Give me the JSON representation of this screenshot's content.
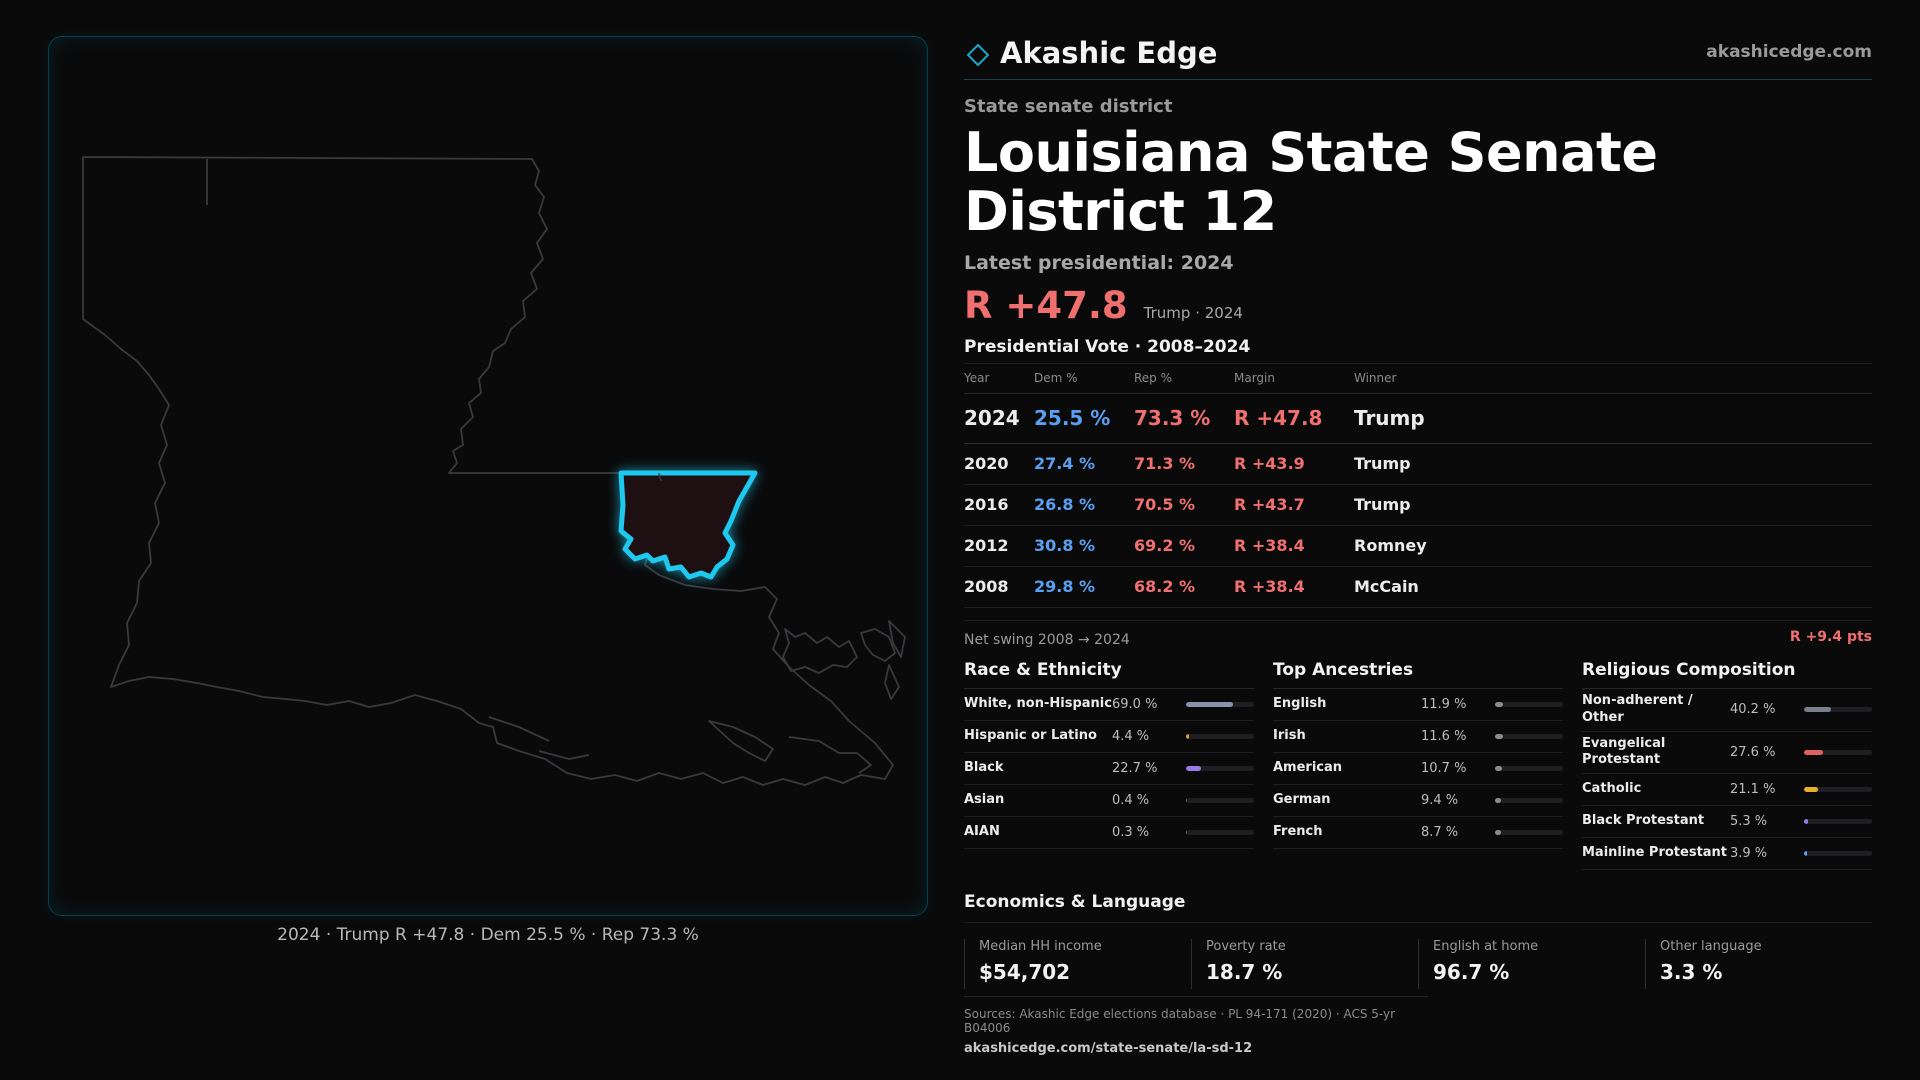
{
  "brand": {
    "name": "Akashic Edge",
    "url": "akashicedge.com",
    "logo_icon": "diamond-outline-icon",
    "accent": "#1aa7c9"
  },
  "header": {
    "eyebrow": "State senate district",
    "title": "Louisiana State Senate District 12",
    "latest_label": "Latest presidential: 2024",
    "margin": "R +47.8",
    "margin_note": "Trump · 2024"
  },
  "map": {
    "caption": "2024 · Trump R +47.8 · Dem 25.5 % · Rep 73.3 %",
    "highlight_color": "#1ec8ee",
    "fill_color": "#1e1012"
  },
  "presidential": {
    "title": "Presidential Vote · 2008–2024",
    "columns": [
      "Year",
      "Dem %",
      "Rep %",
      "Margin",
      "Winner"
    ],
    "rows": [
      {
        "year": "2024",
        "dem": "25.5 %",
        "rep": "73.3 %",
        "margin": "R +47.8",
        "winner": "Trump"
      },
      {
        "year": "2020",
        "dem": "27.4 %",
        "rep": "71.3 %",
        "margin": "R +43.9",
        "winner": "Trump"
      },
      {
        "year": "2016",
        "dem": "26.8 %",
        "rep": "70.5 %",
        "margin": "R +43.7",
        "winner": "Trump"
      },
      {
        "year": "2012",
        "dem": "30.8 %",
        "rep": "69.2 %",
        "margin": "R +38.4",
        "winner": "Romney"
      },
      {
        "year": "2008",
        "dem": "29.8 %",
        "rep": "68.2 %",
        "margin": "R +38.4",
        "winner": "McCain"
      }
    ],
    "swing_label": "Net swing 2008 → 2024",
    "swing_value": "R +9.4 pts"
  },
  "race": {
    "title": "Race & Ethnicity",
    "items": [
      {
        "name": "White, non-Hispanic",
        "pct": "69.0 %",
        "value": 69.0,
        "color": "#8a94a8"
      },
      {
        "name": "Hispanic or Latino",
        "pct": "4.4 %",
        "value": 4.4,
        "color": "#e0a030"
      },
      {
        "name": "Black",
        "pct": "22.7 %",
        "value": 22.7,
        "color": "#9a7ae8"
      },
      {
        "name": "Asian",
        "pct": "0.4 %",
        "value": 0.4,
        "color": "#6a6a70"
      },
      {
        "name": "AIAN",
        "pct": "0.3 %",
        "value": 0.3,
        "color": "#6a6a70"
      }
    ]
  },
  "ancestry": {
    "title": "Top Ancestries",
    "items": [
      {
        "name": "English",
        "pct": "11.9 %",
        "value": 11.9,
        "color": "#8a8a90"
      },
      {
        "name": "Irish",
        "pct": "11.6 %",
        "value": 11.6,
        "color": "#8a8a90"
      },
      {
        "name": "American",
        "pct": "10.7 %",
        "value": 10.7,
        "color": "#8a8a90"
      },
      {
        "name": "German",
        "pct": "9.4 %",
        "value": 9.4,
        "color": "#8a8a90"
      },
      {
        "name": "French",
        "pct": "8.7 %",
        "value": 8.7,
        "color": "#8a8a90"
      }
    ]
  },
  "religion": {
    "title": "Religious Composition",
    "items": [
      {
        "name": "Non-adherent / Other",
        "pct": "40.2 %",
        "value": 40.2,
        "color": "#7a7f8c"
      },
      {
        "name": "Evangelical Protestant",
        "pct": "27.6 %",
        "value": 27.6,
        "color": "#e06060"
      },
      {
        "name": "Catholic",
        "pct": "21.1 %",
        "value": 21.1,
        "color": "#e8b030"
      },
      {
        "name": "Black Protestant",
        "pct": "5.3 %",
        "value": 5.3,
        "color": "#9a7ae8"
      },
      {
        "name": "Mainline Protestant",
        "pct": "3.9 %",
        "value": 3.9,
        "color": "#5aa0f2"
      }
    ]
  },
  "economics": {
    "title": "Economics & Language",
    "cells": [
      {
        "label": "Median HH income",
        "value": "$54,702"
      },
      {
        "label": "Poverty rate",
        "value": "18.7 %"
      },
      {
        "label": "English at home",
        "value": "96.7 %"
      },
      {
        "label": "Other language",
        "value": "3.3 %"
      }
    ]
  },
  "sources": {
    "line1": "Sources: Akashic Edge elections database · PL 94-171 (2020) · ACS 5-yr B04006",
    "line2": "akashicedge.com/state-senate/la-sd-12"
  }
}
